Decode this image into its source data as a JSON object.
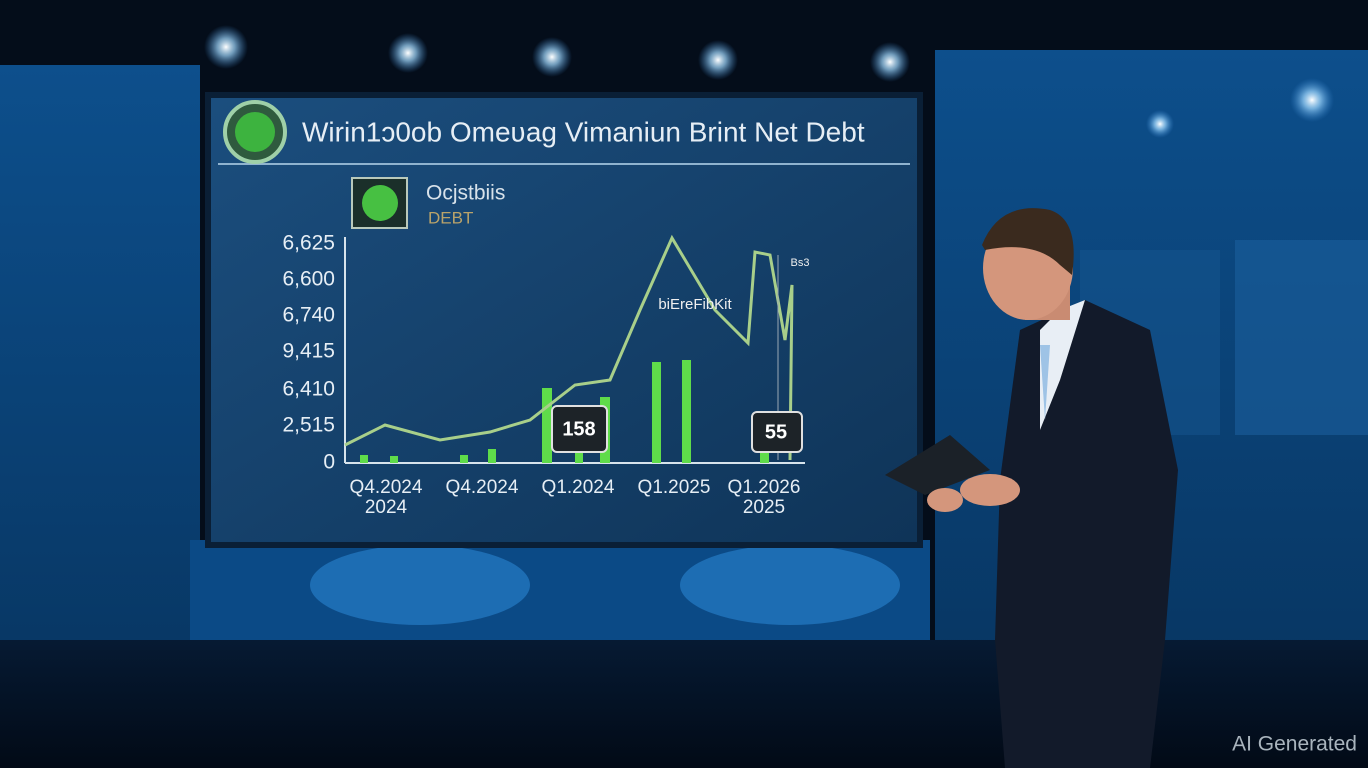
{
  "screen": {
    "title": "Wirin1ɔ0ob Omeʋag Vimaniun Brint Net Debt",
    "legend": {
      "label": "Ocjstbiis",
      "sublabel": "DEBT"
    },
    "y_axis_labels": [
      "6,625",
      "6,600",
      "6,740",
      "9,415",
      "6,410",
      "2,515",
      "0"
    ],
    "x_axis_labels": [
      [
        "Q4.2024",
        "2024"
      ],
      [
        "Q4.2024"
      ],
      [
        "Q1.2024"
      ],
      [
        "Q1.2025"
      ],
      [
        "Q1.2026",
        "2025"
      ]
    ],
    "line_annotation": "biEreFibKit",
    "corner_note": "Bs3",
    "callouts": [
      "158",
      "55"
    ]
  },
  "watermark": "AI Generated"
}
